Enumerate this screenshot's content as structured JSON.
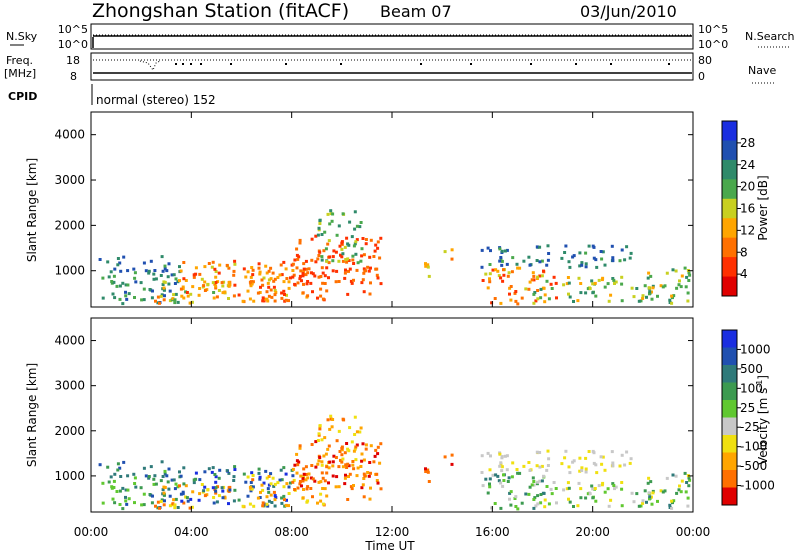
{
  "header": {
    "station": "Zhongshan Station (fitACF)",
    "beam": "Beam 07",
    "date": "03/Jun/2010"
  },
  "strips": {
    "sky_label": "N.Sky",
    "sky_ticks": [
      "10^5",
      "10^0"
    ],
    "search_ticks": [
      "10^5",
      "10^0"
    ],
    "search_label": "N.Search",
    "freq_label": "Freq.",
    "freq_unit": "[MHz]",
    "freq_ticks": [
      "18",
      "8"
    ],
    "nave_ticks": [
      "80",
      "0"
    ],
    "nave_label": "Nave",
    "cpid_label": "CPID",
    "cpid_text": "normal (stereo) 152"
  },
  "colors": {
    "power_scale": [
      "#1a2ee0",
      "#2050b0",
      "#2f8a6a",
      "#4aa84c",
      "#c8d020",
      "#ffa500",
      "#ff7000",
      "#ff3000",
      "#e00000"
    ],
    "velocity_scale": [
      "#1a2ee0",
      "#2050b0",
      "#2f7a7a",
      "#3c9a50",
      "#60c830",
      "#c8c8c8",
      "#f0e010",
      "#ffa500",
      "#ff7000",
      "#e00000"
    ]
  },
  "chart_data": [
    {
      "type": "heatmap",
      "name": "power-panel",
      "ylabel": "Slant Range [km]",
      "ylim": [
        200,
        4500
      ],
      "yticks": [
        "1000",
        "2000",
        "3000",
        "4000"
      ],
      "xlim_hours": [
        0,
        24
      ],
      "colorbar": {
        "label": "Power [dB]",
        "ticks": [
          "28",
          "24",
          "20",
          "16",
          "12",
          "8",
          "4"
        ]
      }
    },
    {
      "type": "heatmap",
      "name": "velocity-panel",
      "ylabel": "Slant Range [km]",
      "ylim": [
        200,
        4500
      ],
      "yticks": [
        "1000",
        "2000",
        "3000",
        "4000"
      ],
      "xlim_hours": [
        0,
        24
      ],
      "xticks": [
        "00:00",
        "04:00",
        "08:00",
        "12:00",
        "16:00",
        "20:00",
        "00:00"
      ],
      "xlabel": "Time UT",
      "colorbar": {
        "label": "Velocity [m s",
        "label_sup": "-1",
        "label_end": "]",
        "ticks": [
          "1000",
          "500",
          "100",
          "25",
          "-25",
          "-100",
          "-500",
          "-1000"
        ]
      }
    }
  ]
}
